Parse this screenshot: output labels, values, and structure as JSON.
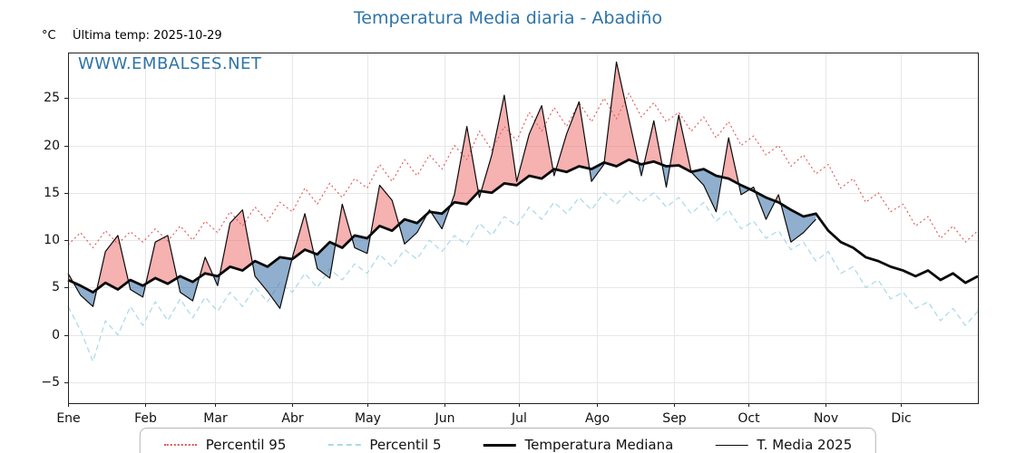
{
  "header": {
    "title": "Temperatura Media diaria - Abadiño",
    "unit": "°C",
    "last_temp": "Última temp: 2025-10-29",
    "watermark": "WWW.EMBALSES.NET"
  },
  "colors": {
    "title": "#2e74a8",
    "watermark": "#2e74a8",
    "axis": "#222222",
    "grid": "#e7e7e7",
    "tick_text": "#111111"
  },
  "legend": [
    "Percentil 95",
    "Percentil 5",
    "Temperatura Mediana",
    "T. Media 2025"
  ],
  "chart_data": {
    "type": "line",
    "title": "Temperatura Media diaria - Abadiño",
    "annotation": "Última temp: 2025-10-29",
    "x_unit": "day_of_year",
    "xlim": [
      0,
      365
    ],
    "ylim": [
      -7.2,
      29.8
    ],
    "ylabel": "°C",
    "grid": true,
    "legend_position": "bottom",
    "y_ticks": [
      -5,
      0,
      5,
      10,
      15,
      20,
      25
    ],
    "x_ticks": {
      "labels": [
        "Ene",
        "Feb",
        "Mar",
        "Abr",
        "May",
        "Jun",
        "Jul",
        "Ago",
        "Sep",
        "Oct",
        "Nov",
        "Dic"
      ],
      "days": [
        0,
        31,
        59,
        90,
        120,
        151,
        181,
        212,
        243,
        273,
        304,
        334
      ]
    },
    "series": [
      {
        "name": "Percentil 95",
        "color": "#e05555",
        "style": "dotted",
        "width": 1.1,
        "x_start": 0,
        "x_step": 5,
        "values": [
          9.5,
          10.8,
          9.2,
          11.0,
          9.6,
          10.9,
          9.8,
          11.2,
          9.9,
          11.5,
          10.0,
          12.0,
          10.8,
          13.0,
          11.5,
          13.5,
          12.0,
          14.0,
          13.0,
          15.5,
          13.8,
          16.0,
          14.5,
          16.5,
          15.5,
          18.0,
          16.2,
          18.5,
          16.8,
          19.0,
          17.5,
          20.0,
          18.5,
          21.5,
          19.5,
          22.0,
          20.5,
          23.5,
          21.5,
          24.0,
          22.0,
          24.5,
          22.5,
          25.0,
          22.8,
          25.5,
          23.0,
          24.5,
          22.5,
          23.5,
          21.5,
          23.0,
          20.8,
          22.5,
          20.0,
          21.0,
          19.0,
          20.0,
          17.8,
          19.0,
          17.0,
          18.0,
          15.5,
          16.5,
          14.0,
          15.0,
          13.0,
          13.8,
          11.5,
          12.5,
          10.2,
          11.5,
          9.8,
          11.0
        ]
      },
      {
        "name": "Percentil 5",
        "color": "#a9d8e8",
        "style": "dashed",
        "width": 1.2,
        "x_start": 0,
        "x_step": 5,
        "values": [
          3.0,
          0.5,
          -2.8,
          1.5,
          0.0,
          3.0,
          1.0,
          3.5,
          1.5,
          3.8,
          1.8,
          4.0,
          2.5,
          4.5,
          3.0,
          5.0,
          3.5,
          5.5,
          4.5,
          6.5,
          5.0,
          7.0,
          5.8,
          7.5,
          6.5,
          8.5,
          7.2,
          9.0,
          8.0,
          10.0,
          8.8,
          10.5,
          9.5,
          11.8,
          10.5,
          12.5,
          11.5,
          13.5,
          12.2,
          14.0,
          12.8,
          14.5,
          13.2,
          15.0,
          13.8,
          15.2,
          14.0,
          15.0,
          13.5,
          14.5,
          12.8,
          14.0,
          12.0,
          13.2,
          11.2,
          12.0,
          10.2,
          11.0,
          9.0,
          9.8,
          7.8,
          8.8,
          6.5,
          7.2,
          5.0,
          5.8,
          3.8,
          4.5,
          2.8,
          3.5,
          1.5,
          2.8,
          1.0,
          2.5
        ]
      },
      {
        "name": "Temperatura Mediana",
        "color": "#0a0a0a",
        "style": "solid",
        "width": 2.8,
        "x_start": 0,
        "x_step": 5,
        "values": [
          5.8,
          5.2,
          4.5,
          5.5,
          4.8,
          5.8,
          5.2,
          6.0,
          5.4,
          6.2,
          5.6,
          6.5,
          6.2,
          7.2,
          6.8,
          7.8,
          7.2,
          8.2,
          8.0,
          9.0,
          8.5,
          9.8,
          9.2,
          10.5,
          10.2,
          11.5,
          11.0,
          12.2,
          11.8,
          13.0,
          12.8,
          14.0,
          13.8,
          15.2,
          15.0,
          16.0,
          15.8,
          16.8,
          16.5,
          17.5,
          17.2,
          17.8,
          17.5,
          18.2,
          17.8,
          18.5,
          18.0,
          18.3,
          17.8,
          17.9,
          17.2,
          17.5,
          16.8,
          16.5,
          15.8,
          15.2,
          14.5,
          14.0,
          13.2,
          12.5,
          12.8,
          11.0,
          9.8,
          9.2,
          8.2,
          7.8,
          7.2,
          6.8,
          6.2,
          6.8,
          5.8,
          6.5,
          5.5,
          6.2
        ]
      },
      {
        "name": "T. Media 2025",
        "color": "#0a0a0a",
        "style": "solid",
        "width": 1.2,
        "x_start": 0,
        "x_step": 5,
        "fill_against": "Temperatura Mediana",
        "fill_above_color": "rgba(238,100,100,0.5)",
        "fill_below_color": "rgba(70,122,173,0.6)",
        "values": [
          6.5,
          4.2,
          3.0,
          8.8,
          10.5,
          4.8,
          4.0,
          9.8,
          10.5,
          4.5,
          3.6,
          8.2,
          5.2,
          11.8,
          13.2,
          6.2,
          4.6,
          2.8,
          8.2,
          12.8,
          7.0,
          6.0,
          13.8,
          9.2,
          8.6,
          15.8,
          14.2,
          9.6,
          10.8,
          13.2,
          11.2,
          14.8,
          22.0,
          14.5,
          19.0,
          25.3,
          16.2,
          21.2,
          24.2,
          16.8,
          21.2,
          24.6,
          16.2,
          18.0,
          28.8,
          22.8,
          16.8,
          22.6,
          15.6,
          23.2,
          17.2,
          15.8,
          13.0,
          20.8,
          14.8,
          15.6,
          12.2,
          14.8,
          9.8,
          10.8,
          12.2
        ]
      }
    ]
  }
}
